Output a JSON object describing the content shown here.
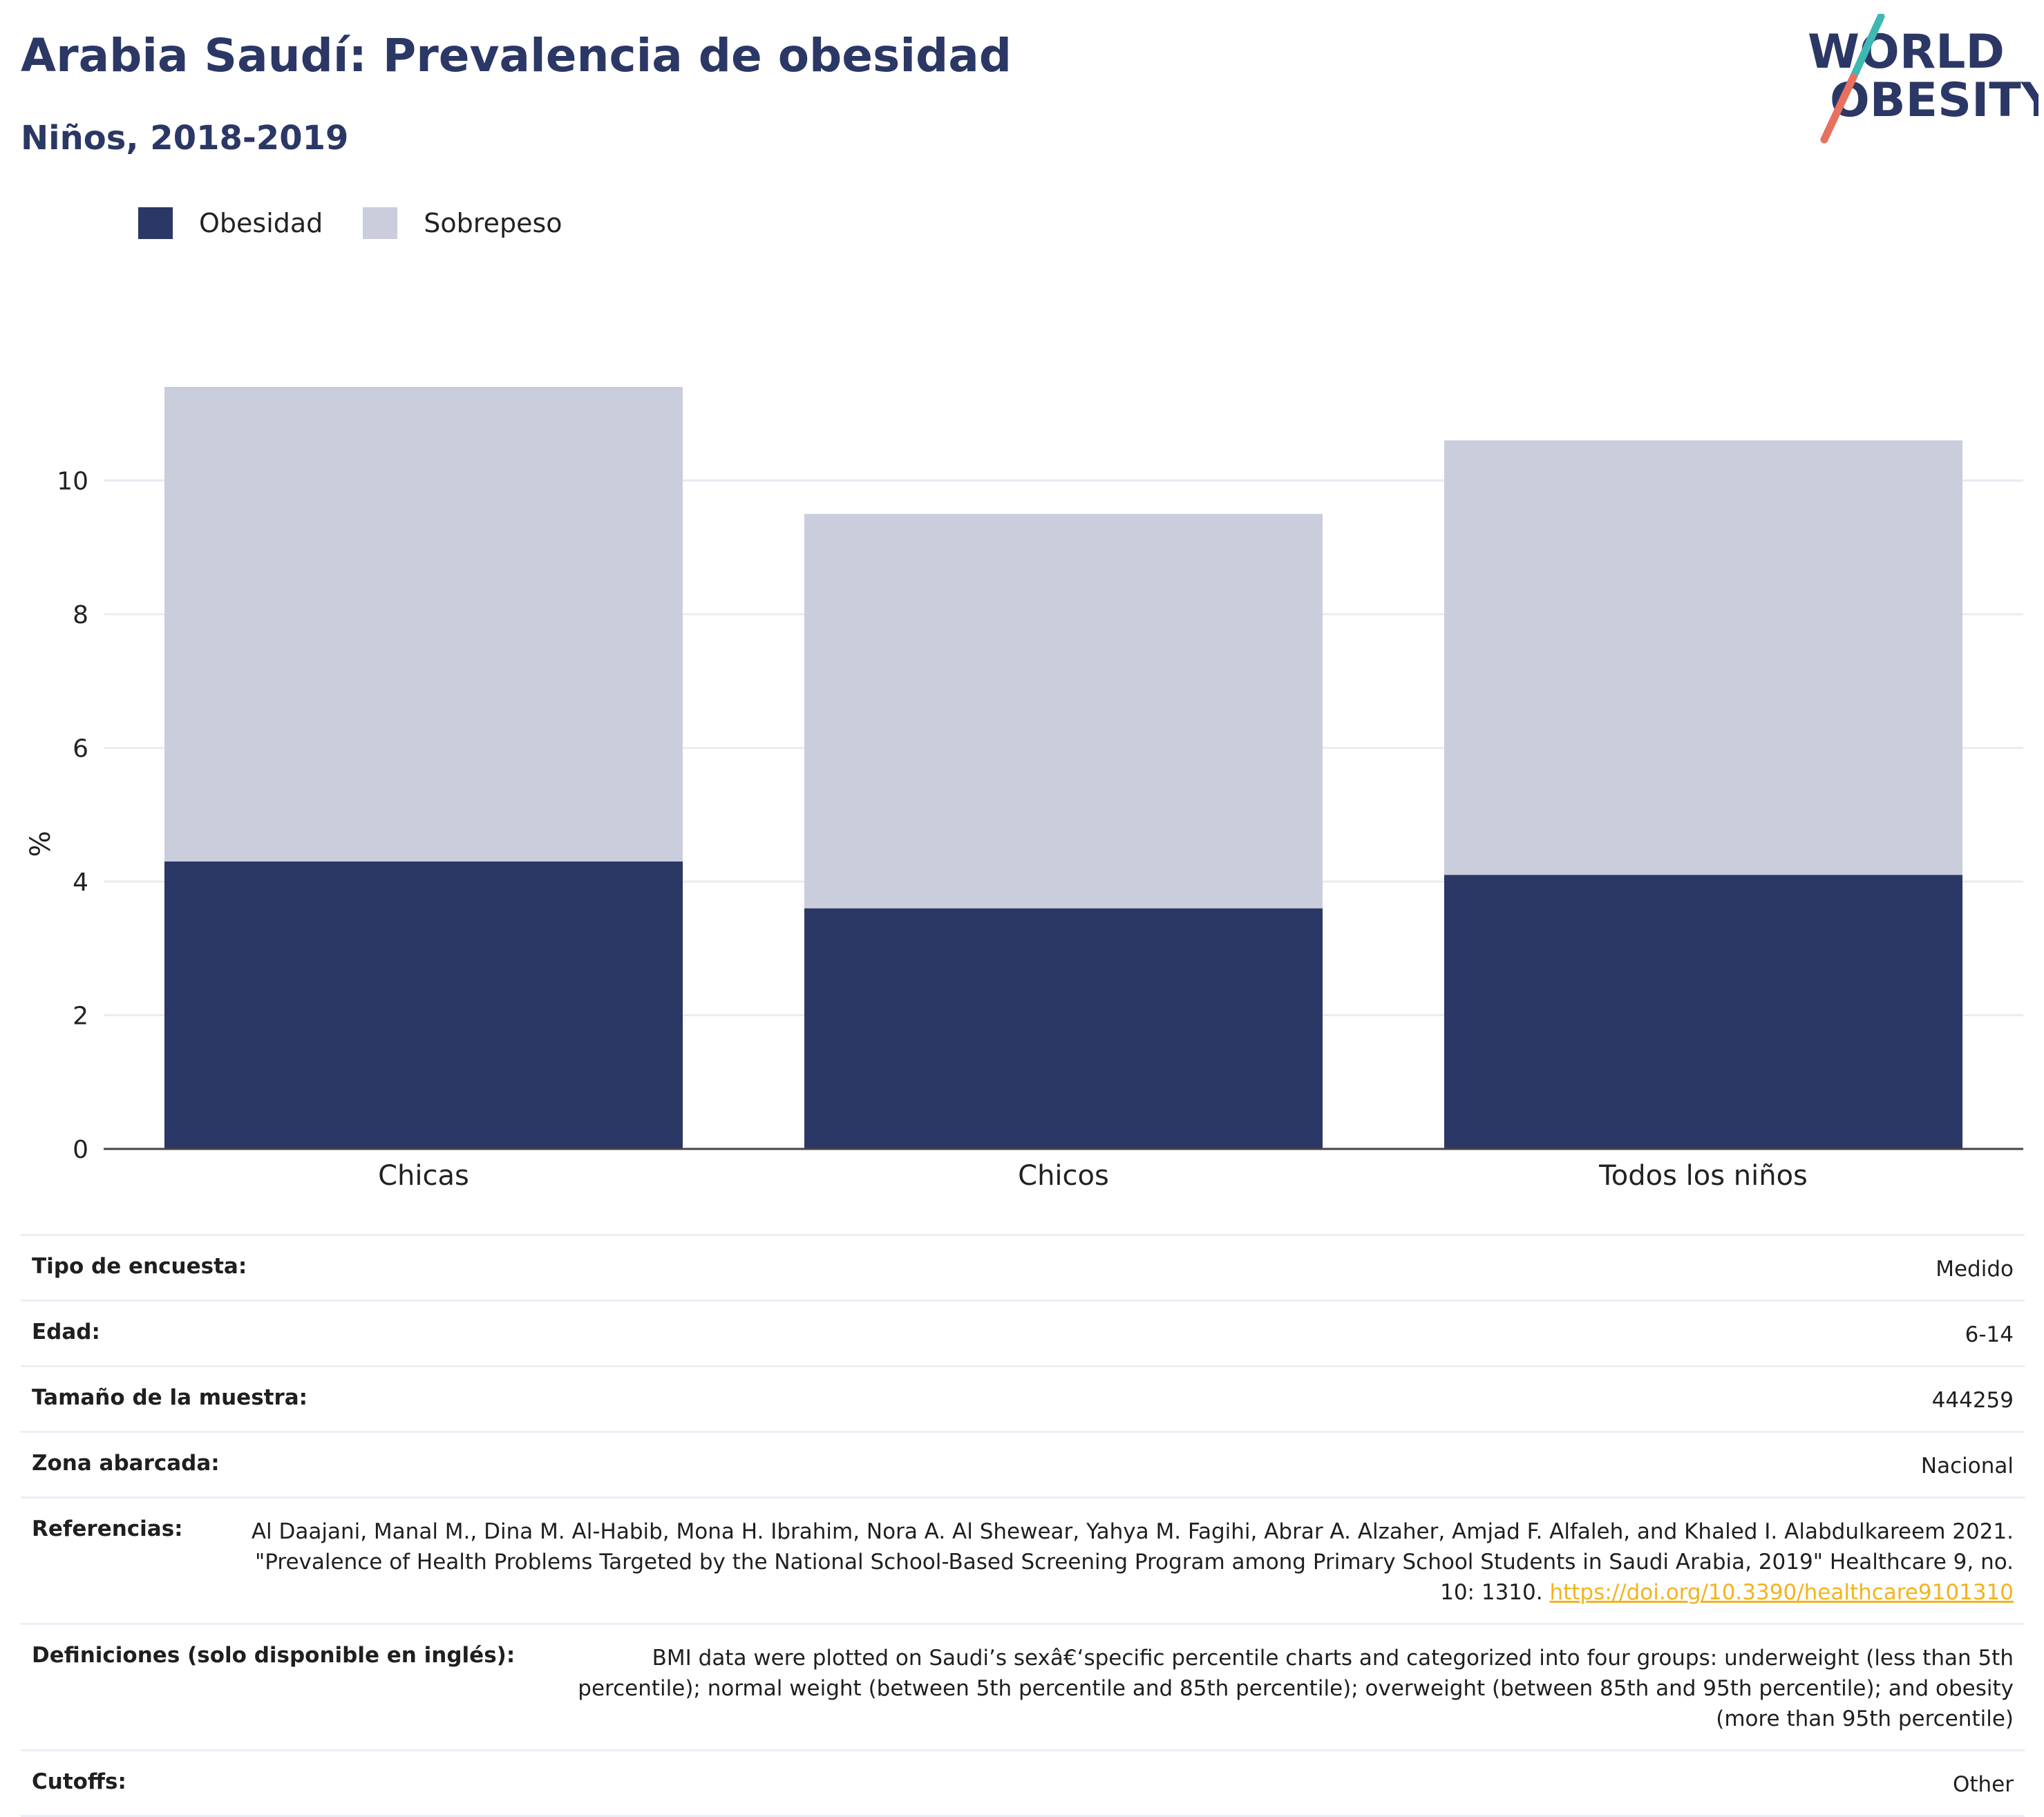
{
  "header": {
    "title": "Arabia Saudí: Prevalencia de obesidad",
    "subtitle": "Niños, 2018-2019"
  },
  "logo": {
    "line1": "WORLD",
    "line2": "OBESITY"
  },
  "colors": {
    "obesity": "#2b3765",
    "overweight": "#cacddb",
    "title": "#2b3765",
    "link": "#f2b31e"
  },
  "chart_data": {
    "type": "bar",
    "stacked": true,
    "categories": [
      "Chicas",
      "Chicos",
      "Todos los niños"
    ],
    "series": [
      {
        "name": "Obesidad",
        "values": [
          4.3,
          3.6,
          4.1
        ]
      },
      {
        "name": "Sobrepeso",
        "values": [
          7.1,
          5.9,
          6.5
        ]
      }
    ],
    "ylabel": "%",
    "ylim": [
      0,
      11.4
    ],
    "yticks": [
      0,
      2,
      4,
      6,
      8,
      10
    ],
    "grid": true,
    "legend": "top-left"
  },
  "meta": [
    {
      "label": "Tipo de encuesta:",
      "value": "Medido"
    },
    {
      "label": "Edad:",
      "value": "6-14"
    },
    {
      "label": "Tamaño de la muestra:",
      "value": "444259"
    },
    {
      "label": "Zona abarcada:",
      "value": "Nacional"
    },
    {
      "label": "Referencias:",
      "value": "Al Daajani, Manal M., Dina M. Al-Habib, Mona H. Ibrahim, Nora A. Al Shewear, Yahya M. Fagihi, Abrar A. Alzaher, Amjad F. Alfaleh, and Khaled I. Alabdulkareem 2021. \"Prevalence of Health Problems Targeted by the National School-Based Screening Program among Primary School Students in Saudi Arabia, 2019\" Healthcare 9, no. 10: 1310. ",
      "link": "https://doi.org/10.3390/healthcare9101310"
    },
    {
      "label": "Definiciones (solo disponible en inglés):",
      "value": "BMI data were plotted on Saudi’s sexâ€‘specific percentile charts and categorized into four groups: underweight (less than 5th percentile); normal weight (between 5th percentile and 85th percentile); overweight (between 85th and 95th percentile); and obesity (more than 95th percentile)"
    },
    {
      "label": "Cutoffs:",
      "value": "Other"
    }
  ]
}
